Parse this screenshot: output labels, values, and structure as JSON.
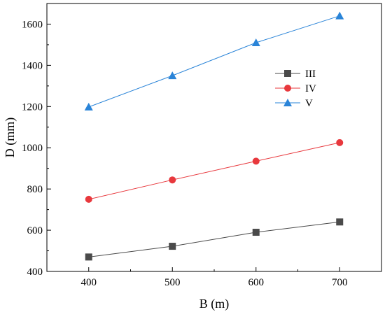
{
  "chart_data": {
    "type": "line",
    "xlabel": "B (m)",
    "ylabel": "D (mm)",
    "xlim": [
      350,
      750
    ],
    "ylim": [
      400,
      1700
    ],
    "xticks": [
      400,
      500,
      600,
      700
    ],
    "yticks": [
      400,
      600,
      800,
      1000,
      1200,
      1400,
      1600
    ],
    "grid": false,
    "legend_position": "center-right",
    "series": [
      {
        "name": "III",
        "color": "#4a4a4a",
        "marker": "square",
        "x": [
          400,
          500,
          600,
          700
        ],
        "y": [
          470,
          522,
          590,
          640
        ]
      },
      {
        "name": "IV",
        "color": "#e8383d",
        "marker": "circle",
        "x": [
          400,
          500,
          600,
          700
        ],
        "y": [
          750,
          844,
          935,
          1025
        ]
      },
      {
        "name": "V",
        "color": "#2a84d8",
        "marker": "triangle",
        "x": [
          400,
          500,
          600,
          700
        ],
        "y": [
          1198,
          1350,
          1510,
          1640
        ]
      }
    ]
  }
}
